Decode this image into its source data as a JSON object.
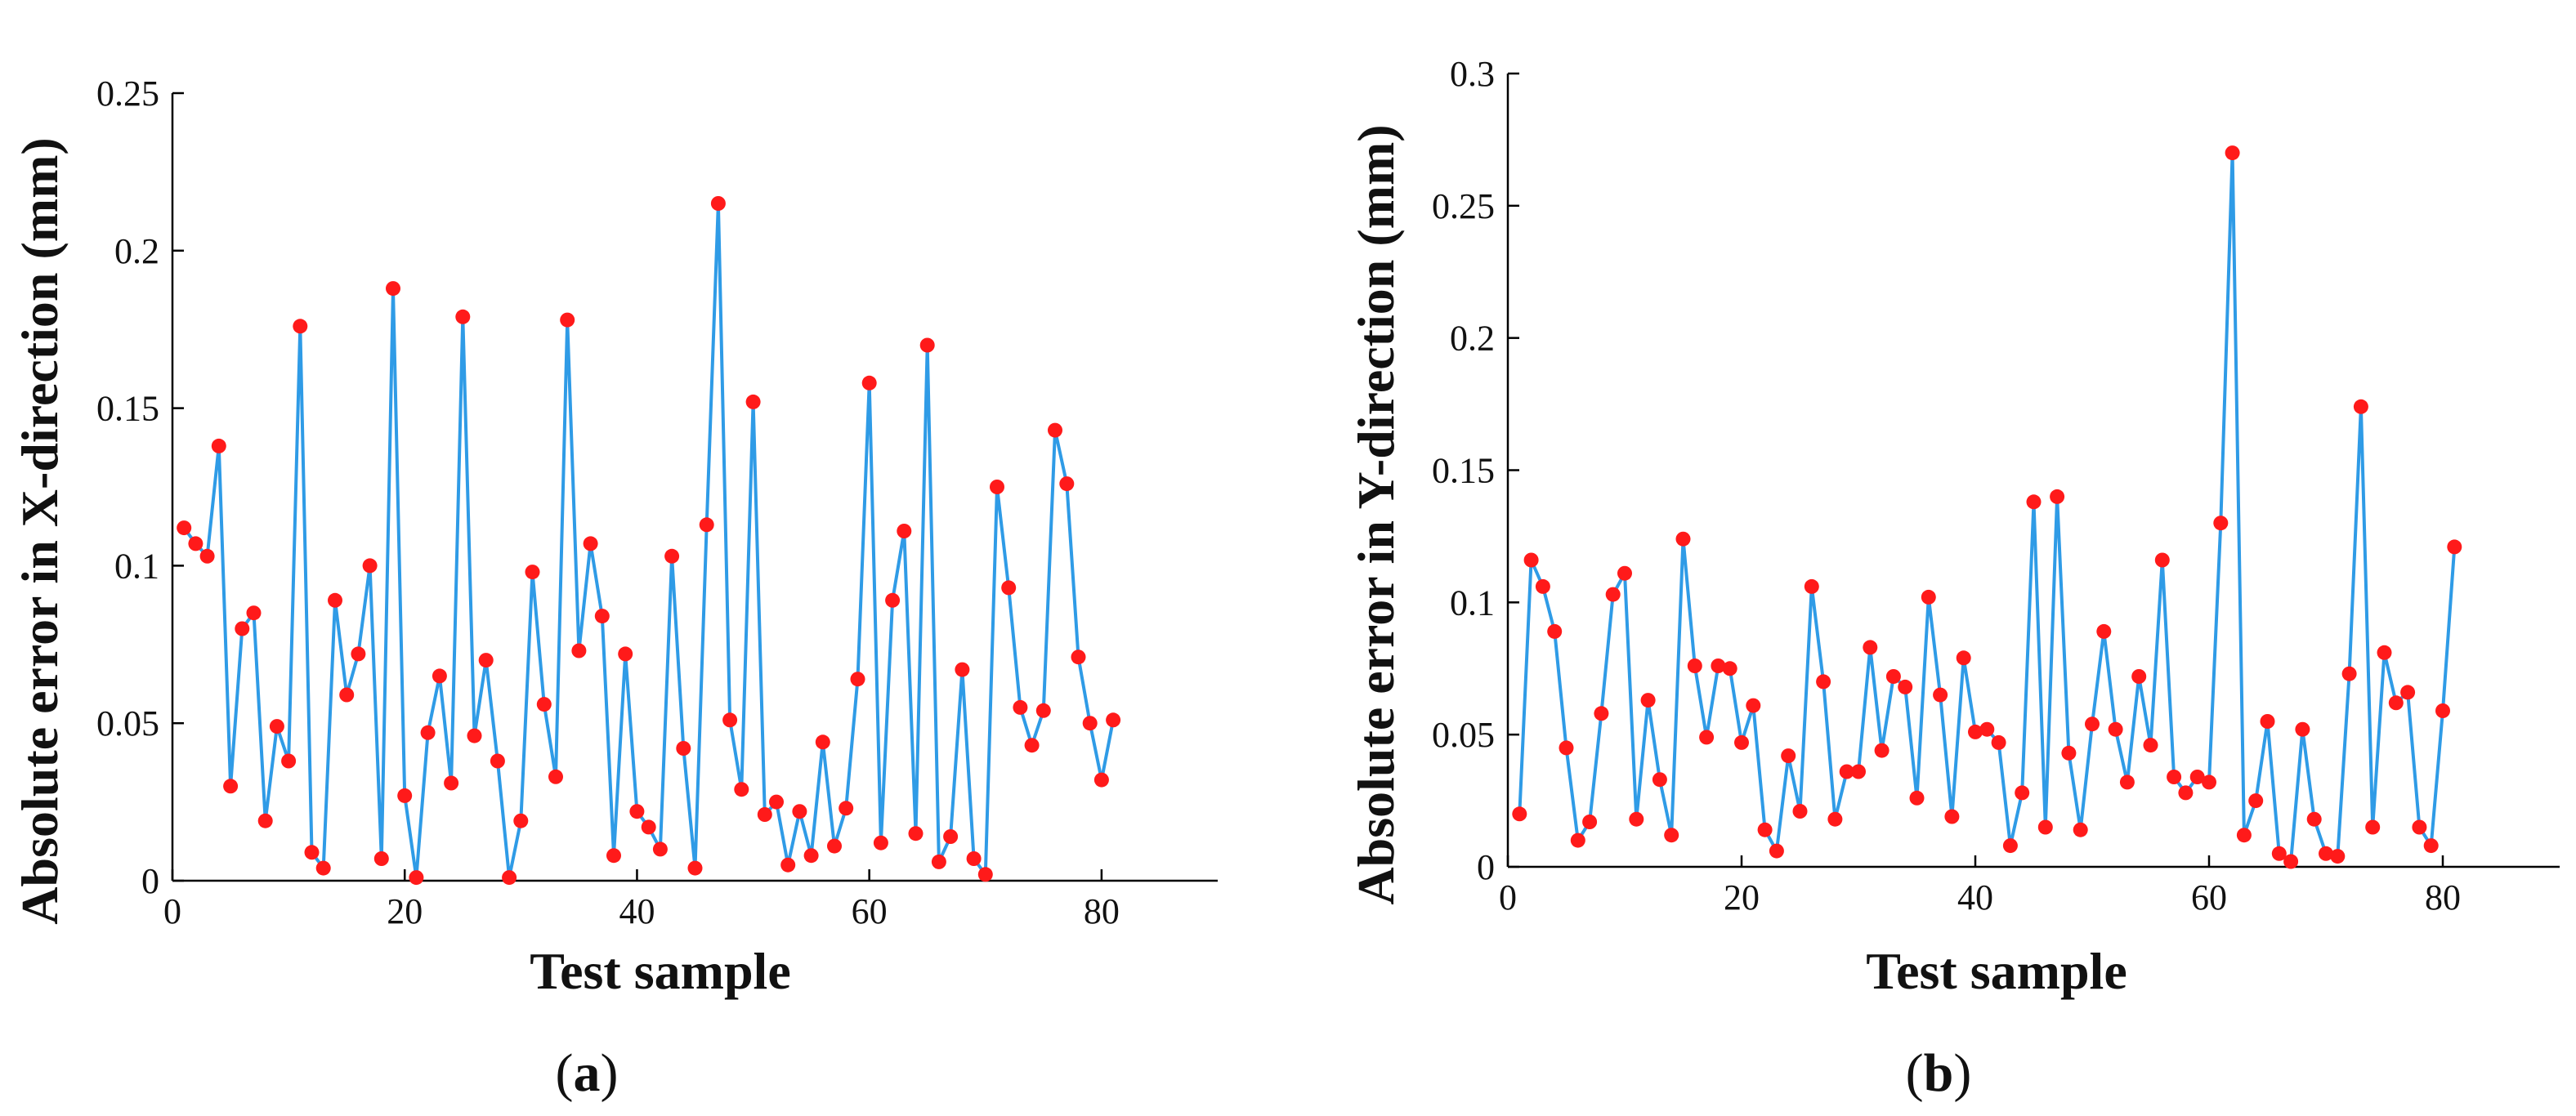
{
  "chart_data": [
    {
      "type": "line",
      "panel_label": "a",
      "xlabel": "Test sample",
      "ylabel": "Absolute error in X-direction (mm)",
      "xlim": [
        0,
        90
      ],
      "ylim": [
        0,
        0.25
      ],
      "xticks": [
        0,
        20,
        40,
        60,
        80
      ],
      "yticks": [
        0,
        0.05,
        0.1,
        0.15,
        0.2,
        0.25
      ],
      "xtick_labels": [
        "0",
        "20",
        "40",
        "60",
        "80"
      ],
      "ytick_labels": [
        "0",
        "0.05",
        "0.1",
        "0.15",
        "0.2",
        "0.25"
      ],
      "series": [
        {
          "name": "X-direction error",
          "line_color": "#2f9be6",
          "marker_color": "#ff1a1a",
          "x": [
            1,
            2,
            3,
            4,
            5,
            6,
            7,
            8,
            9,
            10,
            11,
            12,
            13,
            14,
            15,
            16,
            17,
            18,
            19,
            20,
            21,
            22,
            23,
            24,
            25,
            26,
            27,
            28,
            29,
            30,
            31,
            32,
            33,
            34,
            35,
            36,
            37,
            38,
            39,
            40,
            41,
            42,
            43,
            44,
            45,
            46,
            47,
            48,
            49,
            50,
            51,
            52,
            53,
            54,
            55,
            56,
            57,
            58,
            59,
            60,
            61,
            62,
            63,
            64,
            65,
            66,
            67,
            68,
            69,
            70,
            71,
            72,
            73,
            74,
            75,
            76,
            77,
            78,
            79,
            80,
            81
          ],
          "values": [
            0.112,
            0.107,
            0.103,
            0.138,
            0.03,
            0.08,
            0.085,
            0.019,
            0.049,
            0.038,
            0.176,
            0.009,
            0.004,
            0.089,
            0.059,
            0.072,
            0.1,
            0.007,
            0.188,
            0.027,
            0.001,
            0.047,
            0.065,
            0.031,
            0.179,
            0.046,
            0.07,
            0.038,
            0.001,
            0.019,
            0.098,
            0.056,
            0.033,
            0.178,
            0.073,
            0.107,
            0.084,
            0.008,
            0.072,
            0.022,
            0.017,
            0.01,
            0.103,
            0.042,
            0.004,
            0.113,
            0.215,
            0.051,
            0.029,
            0.152,
            0.021,
            0.025,
            0.005,
            0.022,
            0.008,
            0.044,
            0.011,
            0.023,
            0.064,
            0.158,
            0.012,
            0.089,
            0.111,
            0.015,
            0.17,
            0.006,
            0.014,
            0.067,
            0.007,
            0.002,
            0.125,
            0.093,
            0.055,
            0.043,
            0.054,
            0.143,
            0.126,
            0.071,
            0.05,
            0.032,
            0.051
          ]
        }
      ]
    },
    {
      "type": "line",
      "panel_label": "b",
      "xlabel": "Test sample",
      "ylabel": "Absolute error in Y-direction (mm)",
      "xlim": [
        0,
        90
      ],
      "ylim": [
        0,
        0.3
      ],
      "xticks": [
        0,
        20,
        40,
        60,
        80
      ],
      "yticks": [
        0,
        0.05,
        0.1,
        0.15,
        0.2,
        0.25,
        0.3
      ],
      "xtick_labels": [
        "0",
        "20",
        "40",
        "60",
        "80"
      ],
      "ytick_labels": [
        "0",
        "0.05",
        "0.1",
        "0.15",
        "0.2",
        "0.25",
        "0.3"
      ],
      "series": [
        {
          "name": "Y-direction error",
          "line_color": "#2f9be6",
          "marker_color": "#ff1a1a",
          "x": [
            1,
            2,
            3,
            4,
            5,
            6,
            7,
            8,
            9,
            10,
            11,
            12,
            13,
            14,
            15,
            16,
            17,
            18,
            19,
            20,
            21,
            22,
            23,
            24,
            25,
            26,
            27,
            28,
            29,
            30,
            31,
            32,
            33,
            34,
            35,
            36,
            37,
            38,
            39,
            40,
            41,
            42,
            43,
            44,
            45,
            46,
            47,
            48,
            49,
            50,
            51,
            52,
            53,
            54,
            55,
            56,
            57,
            58,
            59,
            60,
            61,
            62,
            63,
            64,
            65,
            66,
            67,
            68,
            69,
            70,
            71,
            72,
            73,
            74,
            75,
            76,
            77,
            78,
            79,
            80,
            81
          ],
          "values": [
            0.02,
            0.116,
            0.106,
            0.089,
            0.045,
            0.01,
            0.017,
            0.058,
            0.103,
            0.111,
            0.018,
            0.063,
            0.033,
            0.012,
            0.124,
            0.076,
            0.049,
            0.076,
            0.075,
            0.047,
            0.061,
            0.014,
            0.006,
            0.042,
            0.021,
            0.106,
            0.07,
            0.018,
            0.036,
            0.036,
            0.083,
            0.044,
            0.072,
            0.068,
            0.026,
            0.102,
            0.065,
            0.019,
            0.079,
            0.051,
            0.052,
            0.047,
            0.008,
            0.028,
            0.138,
            0.015,
            0.14,
            0.043,
            0.014,
            0.054,
            0.089,
            0.052,
            0.032,
            0.072,
            0.046,
            0.116,
            0.034,
            0.028,
            0.034,
            0.032,
            0.13,
            0.27,
            0.012,
            0.025,
            0.055,
            0.005,
            0.002,
            0.052,
            0.018,
            0.005,
            0.004,
            0.073,
            0.174,
            0.015,
            0.081,
            0.062,
            0.066,
            0.015,
            0.008,
            0.059,
            0.121
          ]
        }
      ]
    }
  ]
}
